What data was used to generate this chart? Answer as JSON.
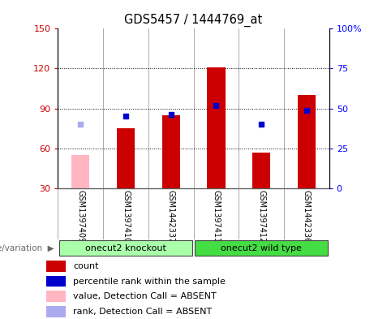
{
  "title": "GDS5457 / 1444769_at",
  "samples": [
    "GSM1397409",
    "GSM1397410",
    "GSM1442337",
    "GSM1397411",
    "GSM1397412",
    "GSM1442336"
  ],
  "count_values": [
    null,
    75,
    85,
    121,
    57,
    100
  ],
  "count_absent": [
    55,
    null,
    null,
    null,
    null,
    null
  ],
  "percentile_values": [
    null,
    45,
    46,
    52,
    40,
    49
  ],
  "percentile_absent": [
    40,
    null,
    null,
    null,
    null,
    null
  ],
  "ylim_left": [
    30,
    150
  ],
  "ylim_right": [
    0,
    100
  ],
  "yticks_left": [
    30,
    60,
    90,
    120,
    150
  ],
  "ytick_labels_left": [
    "30",
    "60",
    "90",
    "120",
    "150"
  ],
  "yticks_right_vals": [
    0,
    25,
    50,
    75,
    100
  ],
  "ytick_labels_right": [
    "0",
    "25",
    "50",
    "75",
    "100%"
  ],
  "bar_color_present": "#cc0000",
  "bar_color_absent": "#ffb6c1",
  "dot_color_present": "#0000cc",
  "dot_color_absent": "#aaaaee",
  "group_names": [
    "onecut2 knockout",
    "onecut2 wild type"
  ],
  "group_ranges": [
    [
      0,
      3
    ],
    [
      3,
      6
    ]
  ],
  "group_colors": [
    "#aaffaa",
    "#44dd44"
  ],
  "legend_labels": [
    "count",
    "percentile rank within the sample",
    "value, Detection Call = ABSENT",
    "rank, Detection Call = ABSENT"
  ],
  "legend_colors": [
    "#cc0000",
    "#0000cc",
    "#ffb6c1",
    "#aaaaee"
  ],
  "genotype_label": "genotype/variation"
}
